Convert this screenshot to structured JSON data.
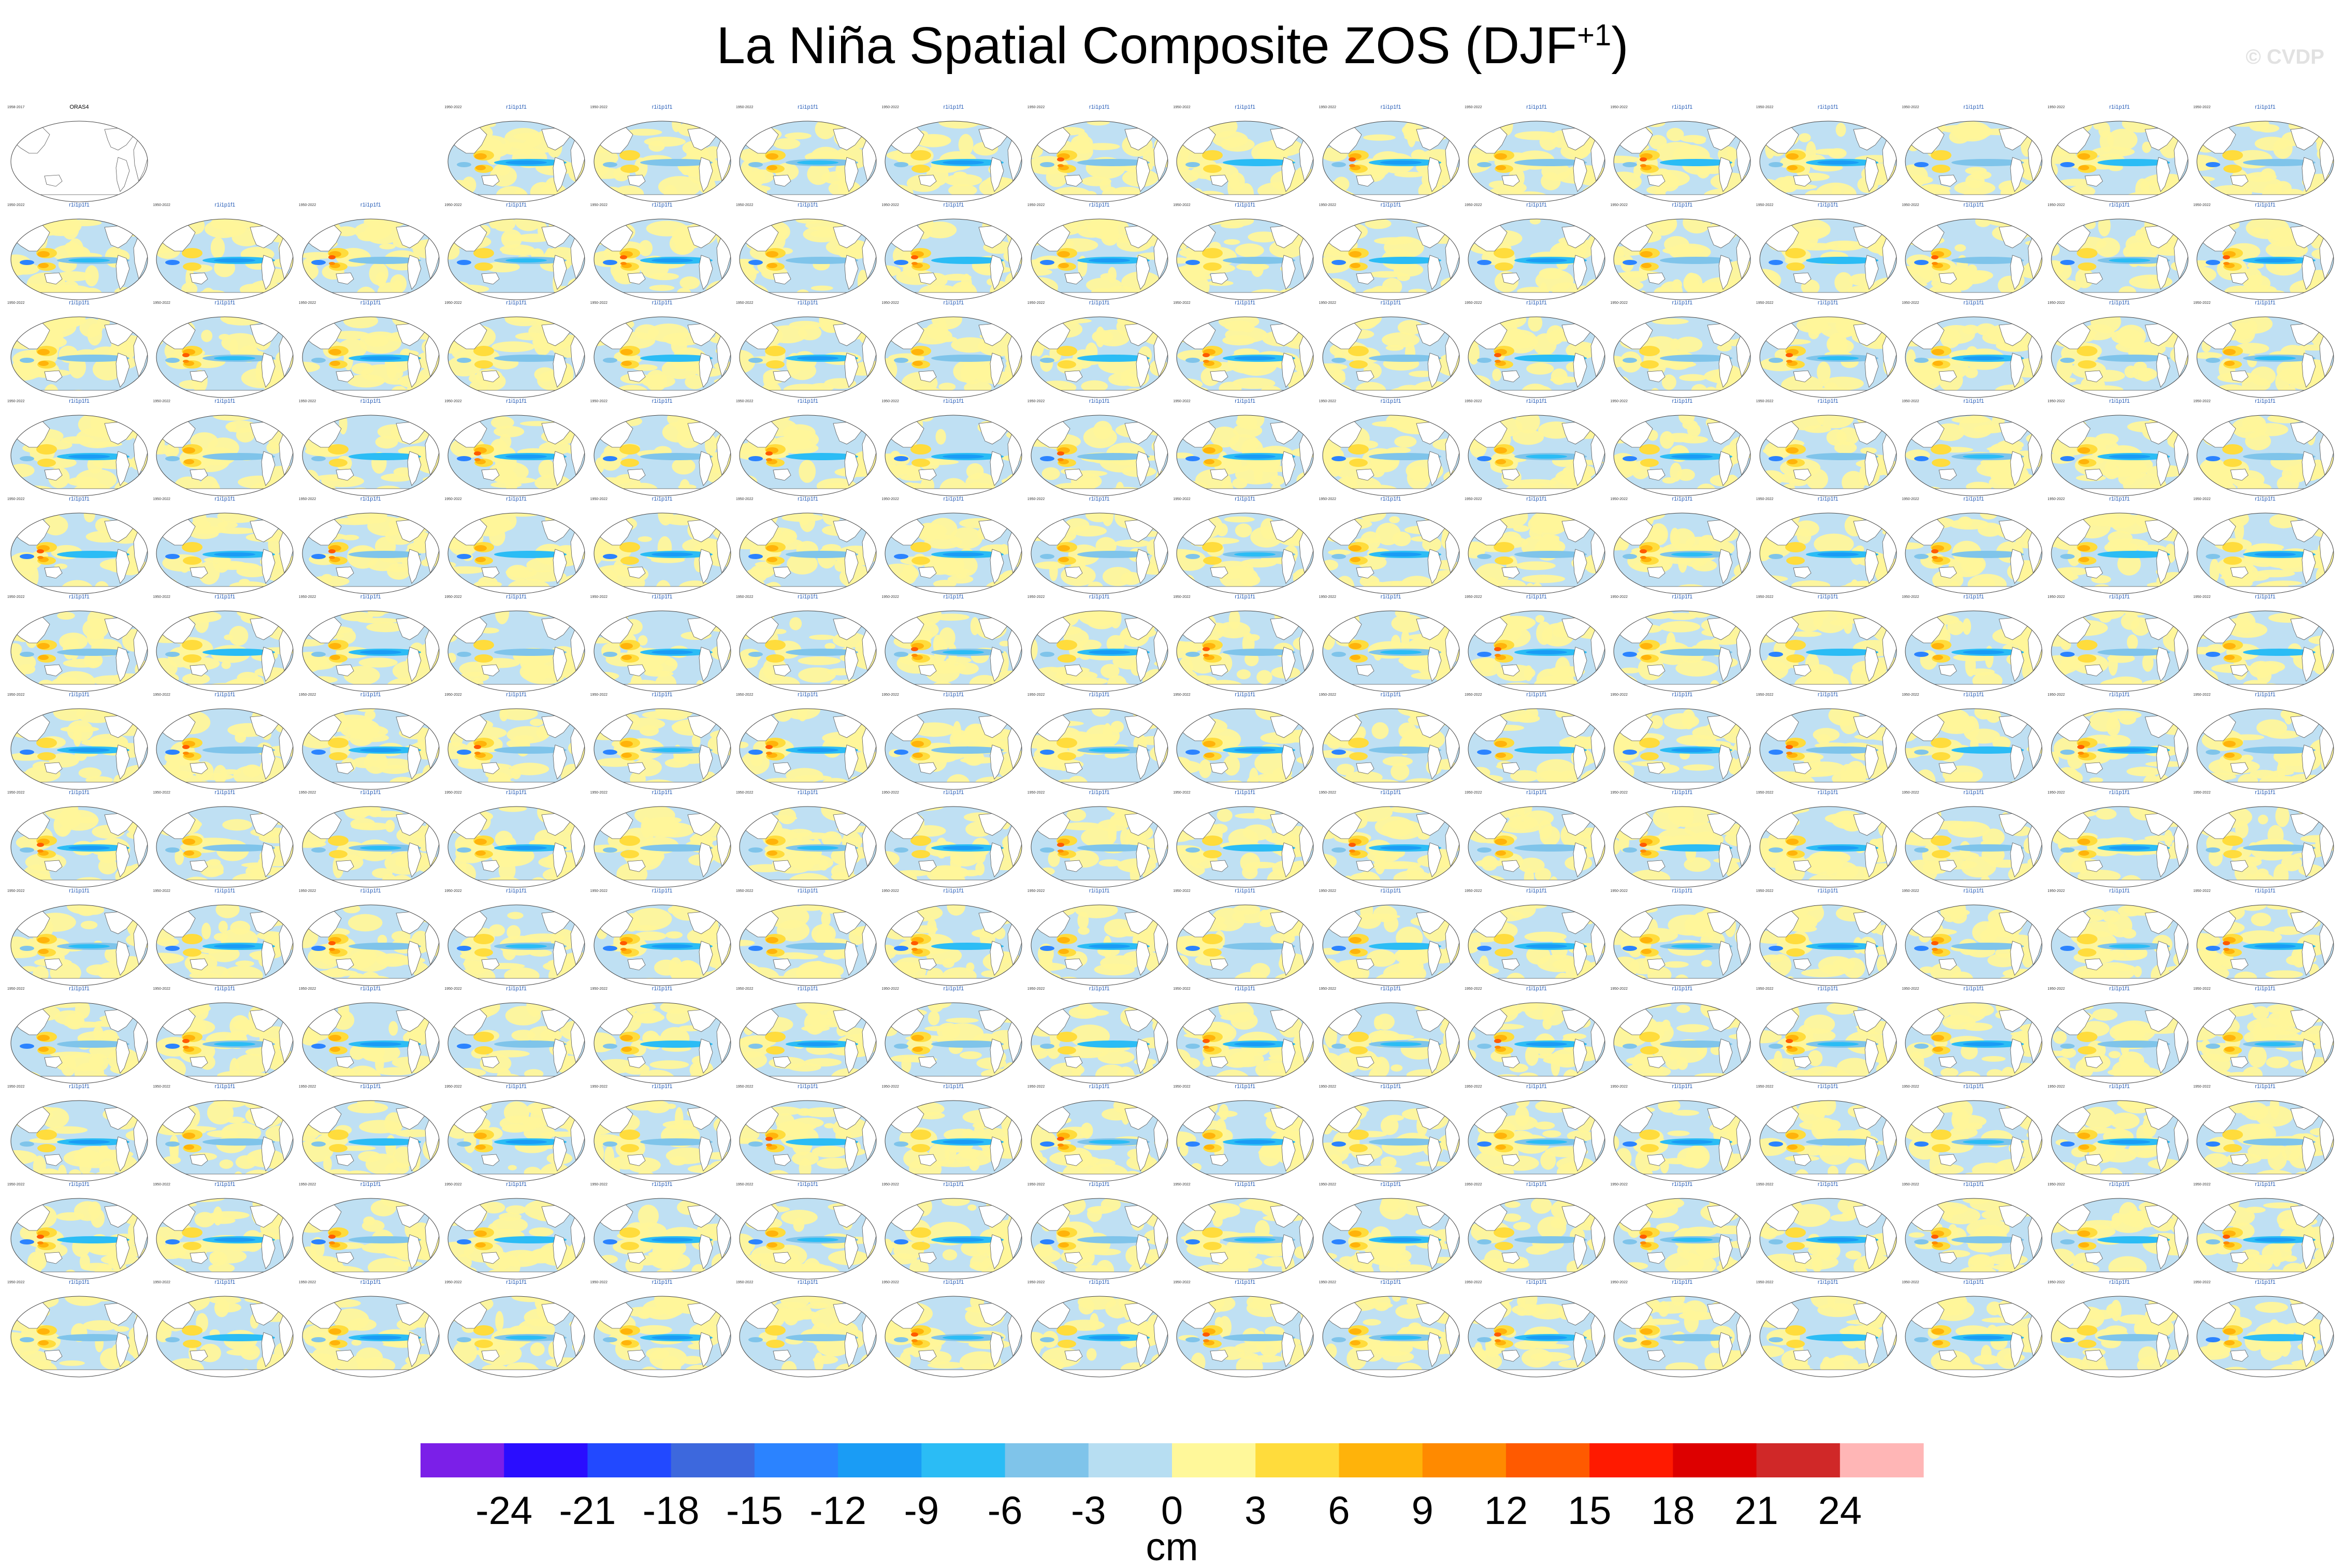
{
  "title_main": "La Niña Spatial Composite ZOS (DJF",
  "title_sup": "+1",
  "title_end": ")",
  "credit": "© CVDP",
  "colors": {
    "ocean_base": "#bfe0f3",
    "neutral_pos": "#fff59a",
    "land": "#ffffff",
    "coast": "#555555",
    "panel_title": "#2a5fb8"
  },
  "chart_data": {
    "type": "heatmap",
    "description_visible_layout": "grid",
    "grid": {
      "rows": 13,
      "cols": 16,
      "empty_cells": [
        [
          0,
          1
        ],
        [
          0,
          2
        ]
      ]
    },
    "panels": [
      {
        "title": "ORAS4",
        "left": "1958-2017",
        "right": ""
      }
    ],
    "panel_title_pattern_left": "1950-2022",
    "panel_title_pattern_right": "r1i1p1f1",
    "colorbar": {
      "unit": "cm",
      "ticks": [
        "-24",
        "-21",
        "-18",
        "-15",
        "-12",
        "-9",
        "-6",
        "-3",
        "0",
        "3",
        "6",
        "9",
        "12",
        "15",
        "18",
        "21",
        "24"
      ],
      "colors": [
        "#7b1fe8",
        "#2a0dff",
        "#2249ff",
        "#3d68dd",
        "#2b83ff",
        "#1a9cf5",
        "#2bbcf5",
        "#7fc4ea",
        "#b7def2",
        "#fff89a",
        "#ffdc3c",
        "#ffb30a",
        "#ff8a00",
        "#ff5a00",
        "#ff1a00",
        "#dd0000",
        "#d02828",
        "#ffb6b6"
      ]
    }
  }
}
